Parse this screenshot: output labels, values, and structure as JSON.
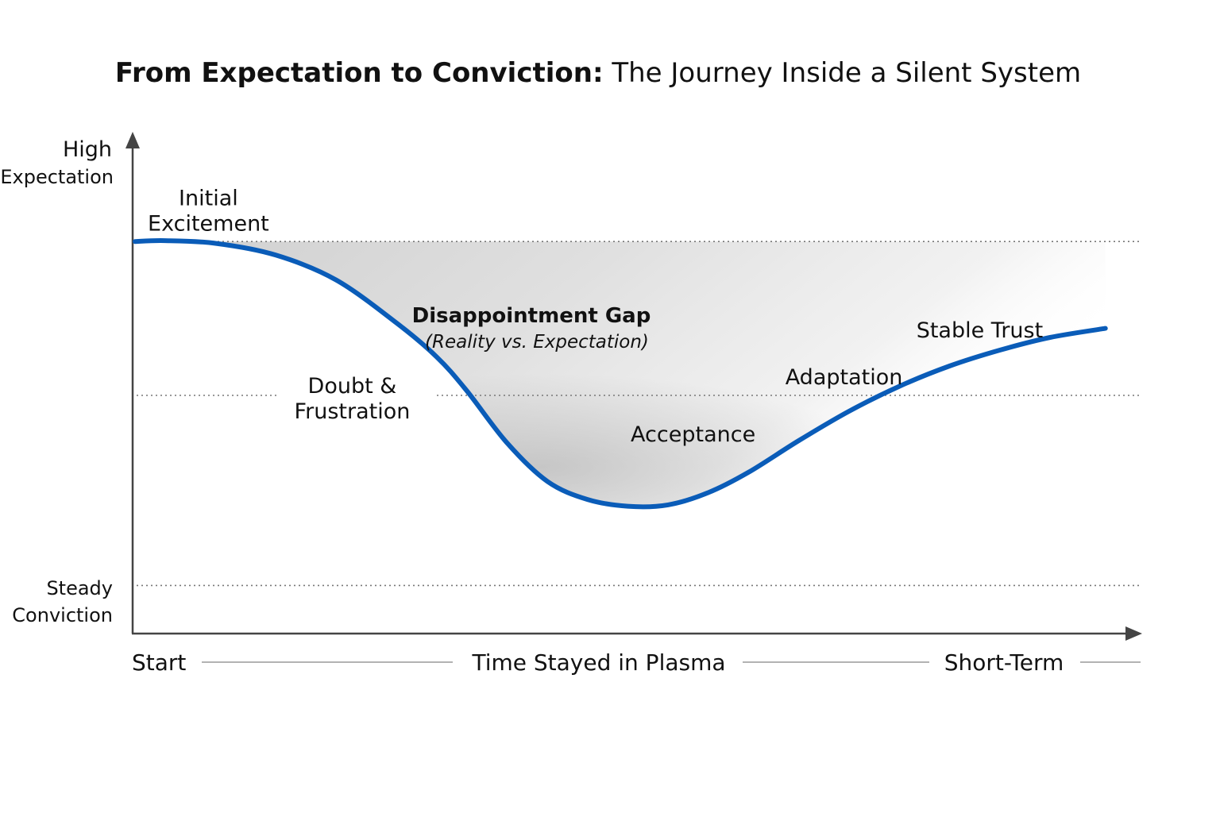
{
  "colors": {
    "curve": "#0a5cb8",
    "axis": "#444444",
    "dotted": "#777777",
    "gap_fill_dark": "#bdbdbd",
    "gap_fill_light": "#ececec",
    "rule": "#9a9a9a"
  },
  "chart_data": {
    "type": "line",
    "title_bold": "From Expectation to Conviction:",
    "title_rest": " The Journey Inside a Silent System",
    "y_axis": {
      "top_label_line1": "High",
      "top_label_line2": "Expectation",
      "bottom_label_line1": "Steady",
      "bottom_label_line2": "Conviction",
      "ylim": [
        0,
        100
      ],
      "reference_levels": [
        84,
        50,
        8
      ]
    },
    "x_axis": {
      "label": "Time Stayed in Plasma",
      "start_label": "Start",
      "end_label": "Short-Term",
      "xlim": [
        0,
        100
      ]
    },
    "series": [
      {
        "name": "Expectation",
        "x": [
          0,
          3,
          8,
          14,
          20,
          26,
          30,
          33,
          37,
          41,
          45,
          49,
          53,
          57,
          61,
          66,
          71,
          76,
          81,
          86,
          91,
          96.5
        ],
        "y": [
          84,
          84.2,
          83.6,
          81,
          75.5,
          66,
          58.5,
          51,
          39.5,
          31,
          27,
          25.5,
          25.8,
          28.5,
          33,
          40,
          46.5,
          52,
          56.5,
          60,
          62.8,
          64.8
        ]
      }
    ],
    "gap_region": {
      "label": "Disappointment Gap",
      "sublabel": "(Reality vs. Expectation)",
      "upper_level": 84
    },
    "annotations": [
      {
        "label_line1": "Initial",
        "label_line2": "Excitement",
        "x": 7.3,
        "y": 92
      },
      {
        "label_line1": "Doubt &",
        "label_line2": "Frustration",
        "x": 21.6,
        "y": 50.5
      },
      {
        "label_line1": "Acceptance",
        "label_line2": "",
        "x": 55.5,
        "y": 39.8
      },
      {
        "label_line1": "Adaptation",
        "label_line2": "",
        "x": 70.5,
        "y": 52.5
      },
      {
        "label_line1": "Stable Trust",
        "label_line2": "",
        "x": 84,
        "y": 62.8
      }
    ]
  }
}
